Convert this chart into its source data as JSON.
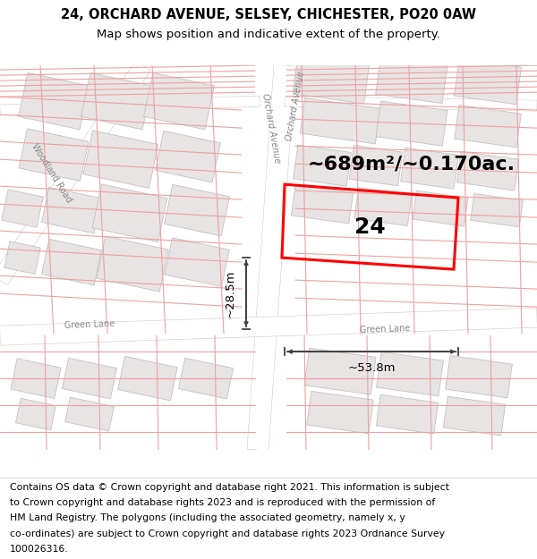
{
  "title_line1": "24, ORCHARD AVENUE, SELSEY, CHICHESTER, PO20 0AW",
  "title_line2": "Map shows position and indicative extent of the property.",
  "area_label": "~689m²/~0.170ac.",
  "property_number": "24",
  "width_label": "~53.8m",
  "height_label": "~28.5m",
  "orchard_avenue_label": "Orchard Avenue",
  "green_lane_label": "Green Lane",
  "woodland_road_label": "Woodland Road",
  "footer_lines": [
    "Contains OS data © Crown copyright and database right 2021. This information is subject",
    "to Crown copyright and database rights 2023 and is reproduced with the permission of",
    "HM Land Registry. The polygons (including the associated geometry, namely x, y",
    "co-ordinates) are subject to Crown copyright and database rights 2023 Ordnance Survey",
    "100026316."
  ],
  "map_bg": "#f7f4f4",
  "building_fill": "#e8e4e4",
  "building_edge": "#c8c0c0",
  "road_fill": "#ffffff",
  "road_edge": "#d0c8c8",
  "pink_line": "#f0a0a0",
  "red_poly": "#ff0000",
  "dim_color": "#404040",
  "title_fontsize": 10.5,
  "subtitle_fontsize": 9.5,
  "footer_fontsize": 7.8,
  "area_fontsize": 16,
  "num_fontsize": 18,
  "road_label_fontsize": 7,
  "dim_fontsize": 9.5
}
